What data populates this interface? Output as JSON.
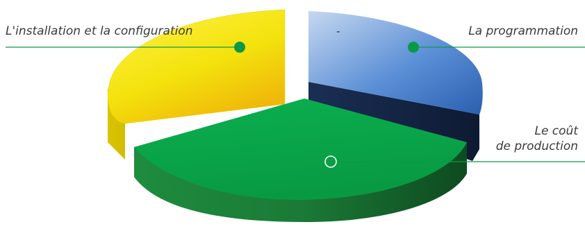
{
  "chart_data": {
    "type": "pie",
    "style": "3d-exploded",
    "slices": [
      {
        "label": "La programmation",
        "value": 28,
        "color": "#5b8fd6"
      },
      {
        "label": "Le coût de production",
        "value": 44,
        "color": "#0aa84b"
      },
      {
        "label": "L'installation et la configuration",
        "value": 28,
        "color": "#f3e20c"
      }
    ],
    "annotation": "-",
    "legend": "callout-lines"
  },
  "labels": {
    "install": "L'installation et la configuration",
    "prog": "La programmation",
    "cost_line1": "Le coût",
    "cost_line2": "de production",
    "dash": "-"
  },
  "colors": {
    "callout_line": "#0a9a47",
    "marker_fill": "#0a9a47",
    "marker_open_stroke": "#ffffff"
  }
}
